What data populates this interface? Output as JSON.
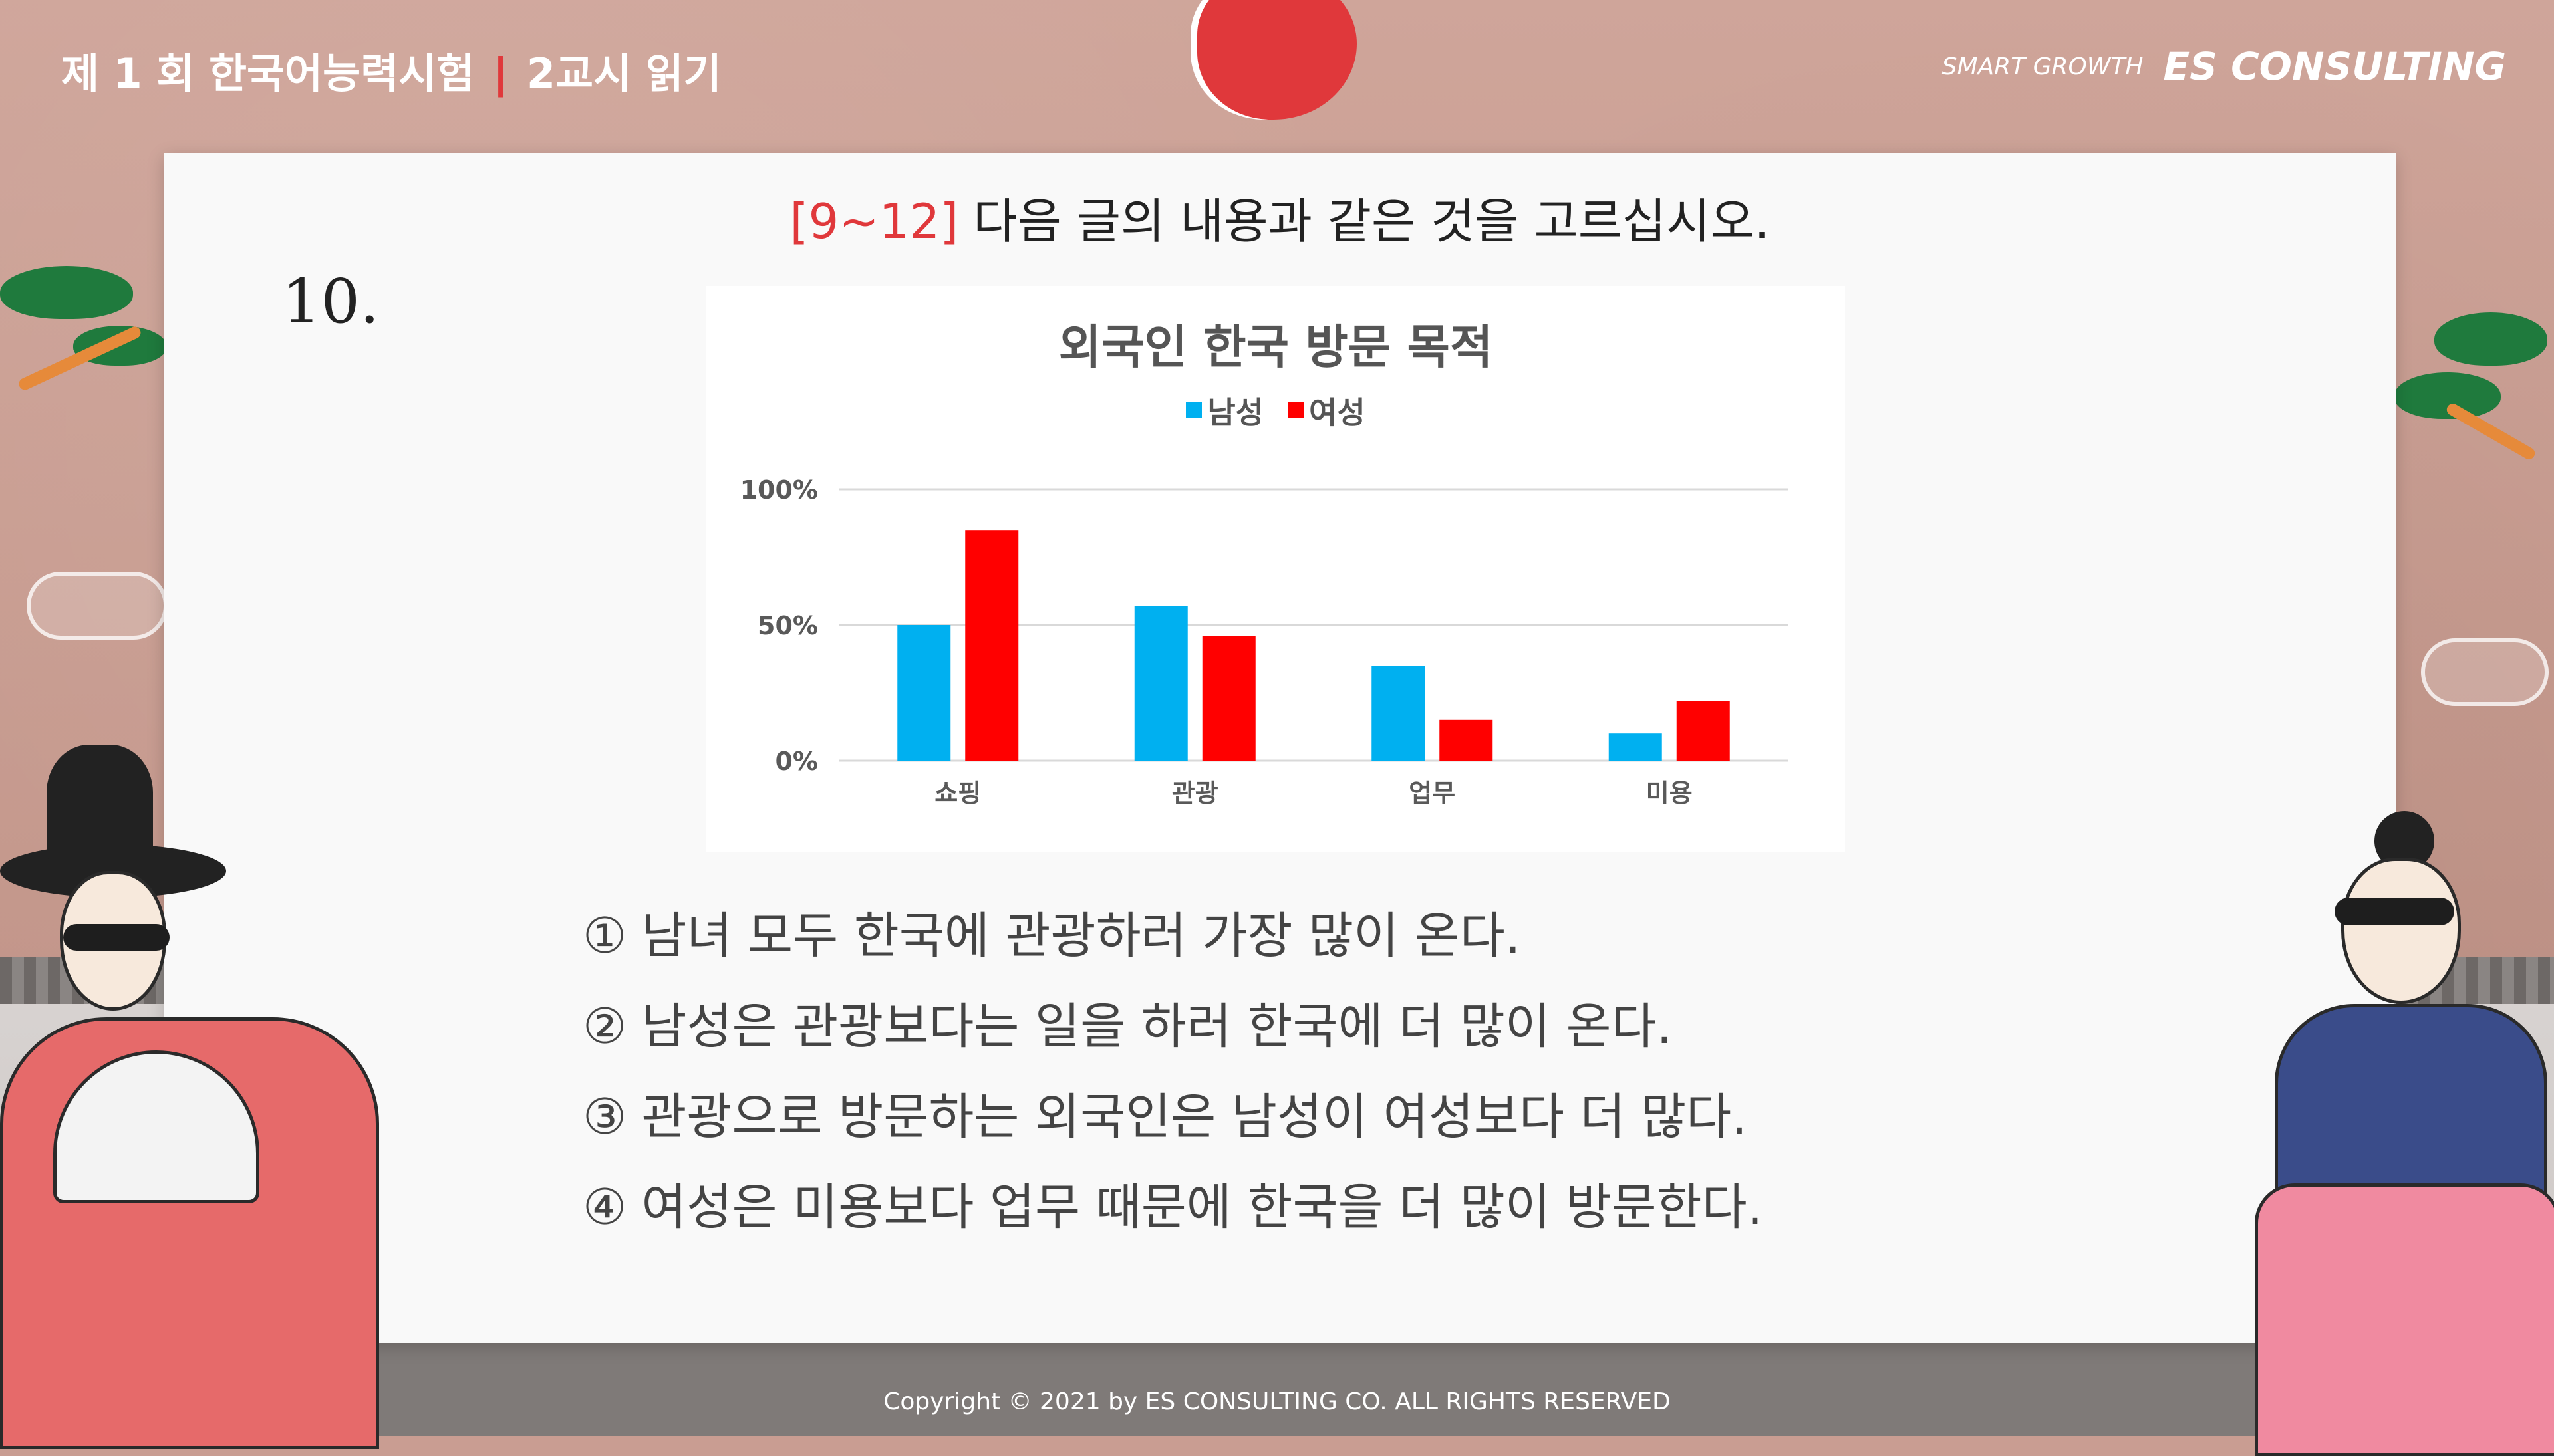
{
  "header": {
    "exam_title": "제 1 회 한국어능력시험",
    "separator": "|",
    "section": "2교시 읽기",
    "tagline": "SMART GROWTH",
    "brand": "ES CONSULTING"
  },
  "question": {
    "range": "[9~12]",
    "instruction": "다음 글의 내용과 같은 것을 고르십시오.",
    "number": "10."
  },
  "chart_data": {
    "type": "bar",
    "title": "외국인 한국 방문 목적",
    "categories": [
      "쇼핑",
      "관광",
      "업무",
      "미용"
    ],
    "series": [
      {
        "name": "남성",
        "color": "#00b0f0",
        "values": [
          50,
          57,
          35,
          10
        ]
      },
      {
        "name": "여성",
        "color": "#ff0000",
        "values": [
          85,
          46,
          15,
          22
        ]
      }
    ],
    "yticks": [
      "0%",
      "50%",
      "100%"
    ],
    "ylim": [
      0,
      100
    ],
    "grid": true,
    "legend_position": "top-center",
    "xlabel": "",
    "ylabel": ""
  },
  "options": [
    {
      "num": "①",
      "text": "남녀 모두 한국에 관광하러 가장 많이 온다."
    },
    {
      "num": "②",
      "text": "남성은 관광보다는 일을 하러 한국에 더 많이 온다."
    },
    {
      "num": "③",
      "text": "관광으로 방문하는 외국인은 남성이 여성보다 더 많다."
    },
    {
      "num": "④",
      "text": "여성은 미용보다 업무 때문에 한국을 더 많이 방문한다."
    }
  ],
  "footer": {
    "copyright": "Copyright © 2021 by ES CONSULTING CO. ALL RIGHTS RESERVED"
  },
  "colors": {
    "accent_red": "#e0383b",
    "male_bar": "#00b0f0",
    "female_bar": "#ff0000",
    "background": "#c99d92"
  },
  "icons": [
    "rising-sun-icon",
    "pine-tree-icon",
    "cloud-icon",
    "man-in-hanbok-illustration",
    "woman-in-hanbok-illustration"
  ]
}
